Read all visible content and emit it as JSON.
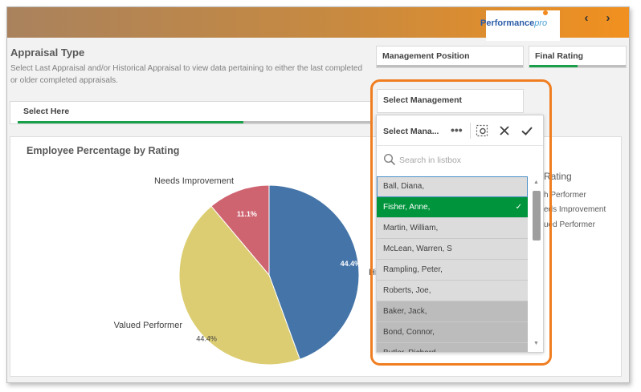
{
  "brand": {
    "logo_main": "Performance",
    "logo_sub": "pro"
  },
  "nav": {
    "prev": "‹",
    "next": "›"
  },
  "appraisal": {
    "title": "Appraisal Type",
    "description": "Select Last Appraisal and/or Historical Appraisal to view data pertaining to either the last completed or older completed appraisals."
  },
  "filters": {
    "select_here": {
      "label": "Select Here",
      "progress": 0.64
    },
    "management_position": {
      "label": "Management Position",
      "progress": 0.0
    },
    "final_rating": {
      "label": "Final Rating",
      "progress": 0.5
    },
    "select_management": {
      "label": "Select Management"
    }
  },
  "chart_panel": {
    "title": "Employee Percentage by Rating"
  },
  "chart_data": {
    "type": "pie",
    "title": "Employee Percentage by Rating",
    "slices": [
      {
        "label": "High Performer",
        "label_visible": "Hi",
        "value": 44.4,
        "value_label": "44.4%",
        "color": "#4474a8"
      },
      {
        "label": "Valued Performer",
        "label_visible": "Valued Performer",
        "value": 44.4,
        "value_label": "44.4%",
        "color": "#dccd72"
      },
      {
        "label": "Needs Improvement",
        "label_visible": "Needs Improvement",
        "value": 11.1,
        "value_label": "11.1%",
        "color": "#cf6471"
      }
    ]
  },
  "legend_peek": {
    "title": "Rating",
    "items": [
      "h Performer",
      "eds Improvement",
      "ued Performer"
    ]
  },
  "listbox": {
    "header_title": "Select Mana...",
    "more_label": "•••",
    "search_placeholder": "Search in listbox",
    "items": [
      {
        "name": "Ball, Diana,",
        "state": "focus"
      },
      {
        "name": "Fisher, Anne,",
        "state": "selected",
        "check": "✓"
      },
      {
        "name": "Martin, William,",
        "state": "alt"
      },
      {
        "name": "McLean, Warren, S",
        "state": "alt"
      },
      {
        "name": "Rampling, Peter,",
        "state": "alt"
      },
      {
        "name": "Roberts, Joe,",
        "state": "alt"
      },
      {
        "name": "Baker, Jack,",
        "state": "excluded"
      },
      {
        "name": "Bond, Connor,",
        "state": "excluded"
      },
      {
        "name": "Butler, Richard,",
        "state": "excluded"
      }
    ],
    "scroll_up": "▲",
    "scroll_down": "▼"
  },
  "colors": {
    "accent_green": "#1a9f4a",
    "highlight_orange": "#f07e21",
    "selected_green": "#00953c"
  }
}
